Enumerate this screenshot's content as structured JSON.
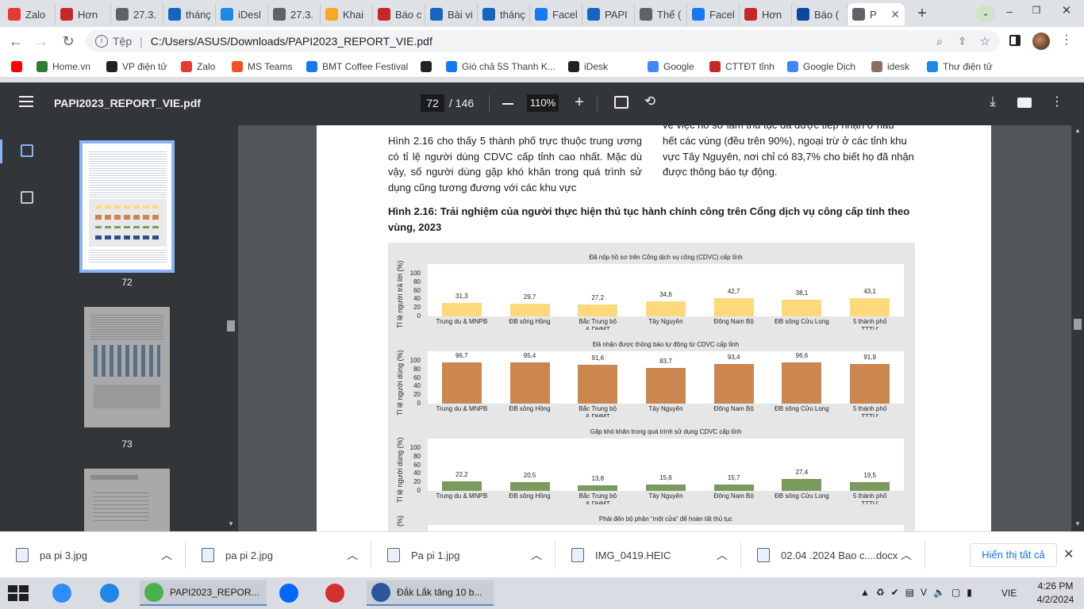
{
  "browser": {
    "tabs": [
      {
        "label": "Zalo",
        "icon": "zalo-icon",
        "color": "#e53935"
      },
      {
        "label": "Hơn",
        "icon": "news-icon",
        "color": "#c62828"
      },
      {
        "label": "27.3.",
        "icon": "globe-icon",
        "color": "#5f6368"
      },
      {
        "label": "thánç",
        "icon": "doc-icon",
        "color": "#1565c0"
      },
      {
        "label": "iDesl",
        "icon": "idesk-icon",
        "color": "#1e88e5"
      },
      {
        "label": "27.3.",
        "icon": "globe-icon",
        "color": "#5f6368"
      },
      {
        "label": "Khai",
        "icon": "star-icon",
        "color": "#f9a825"
      },
      {
        "label": "Báo c",
        "icon": "news-icon",
        "color": "#c62828"
      },
      {
        "label": "Bài vi",
        "icon": "doc-icon",
        "color": "#1565c0"
      },
      {
        "label": "thánç",
        "icon": "doc-icon",
        "color": "#1565c0"
      },
      {
        "label": "Facel",
        "icon": "facebook-icon",
        "color": "#1877f2"
      },
      {
        "label": "PAPI",
        "icon": "hq-icon",
        "color": "#1565c0"
      },
      {
        "label": "Thể (",
        "icon": "globe-icon",
        "color": "#5f6368"
      },
      {
        "label": "Facel",
        "icon": "facebook-icon",
        "color": "#1877f2"
      },
      {
        "label": "Hơn",
        "icon": "gov-icon",
        "color": "#c62828"
      },
      {
        "label": "Báo (",
        "icon": "p-icon",
        "color": "#0d47a1"
      },
      {
        "label": "P",
        "icon": "globe-icon",
        "color": "#5f6368"
      }
    ],
    "new_tab": "+",
    "omnibox": {
      "prefix": "Tệp",
      "url": "C:/Users/ASUS/Downloads/PAPI2023_REPORT_VIE.pdf"
    },
    "bookmarks": [
      {
        "label": "",
        "icon": "youtube-icon",
        "color": "#ff0000"
      },
      {
        "label": "Home.vn",
        "icon": "home-icon",
        "color": "#2e7d32"
      },
      {
        "label": "VP điện tử",
        "icon": "globe-icon",
        "color": "#202124"
      },
      {
        "label": "Zalo",
        "icon": "zalo-icon",
        "color": "#e53935"
      },
      {
        "label": "MS Teams",
        "icon": "windows-icon",
        "color": "#f25022"
      },
      {
        "label": "BMT Coffee Festival",
        "icon": "facebook-icon",
        "color": "#1877f2"
      },
      {
        "label": "",
        "icon": "globe-icon",
        "color": "#202124"
      },
      {
        "label": "Giò chả 5S Thanh K...",
        "icon": "facebook-icon",
        "color": "#1877f2"
      },
      {
        "label": "iDesk",
        "icon": "globe-icon",
        "color": "#202124"
      },
      {
        "label": "Google",
        "icon": "google-icon",
        "color": "#4285f4"
      },
      {
        "label": "CTTĐT tỉnh",
        "icon": "gov-icon",
        "color": "#c62828"
      },
      {
        "label": "Google Dịch",
        "icon": "translate-icon",
        "color": "#4285f4"
      },
      {
        "label": "idesk",
        "icon": "idesk-icon",
        "color": "#8d6e63"
      },
      {
        "label": "Thư điện tử",
        "icon": "mail-icon",
        "color": "#1e88e5"
      }
    ]
  },
  "pdf": {
    "filename": "PAPI2023_REPORT_VIE.pdf",
    "page_current": "72",
    "page_total": "/ 146",
    "zoom": "110%",
    "thumbnails": [
      {
        "label": "72",
        "selected": true
      },
      {
        "label": "73",
        "selected": false
      },
      {
        "label": "",
        "selected": false
      }
    ],
    "paragraph_left": "Hình 2.16 cho thấy 5 thành phố trực thuộc trung ương có tỉ lệ người dùng CDVC cấp tỉnh cao nhất. Mặc dù vậy, số người dùng gặp khó khăn trong quá trình sử dụng cũng tương đương với các khu vực",
    "paragraph_right_partial": "về việc hồ sơ làm thủ tục đã được tiếp nhận ở hầu",
    "paragraph_right": "hết các vùng (đều trên 90%), ngoại trừ ở các tỉnh khu vực Tây Nguyên, nơi chỉ có 83,7% cho biết họ đã nhận được thông báo tự động.",
    "figure_title": "Hình 2.16: Trải nghiệm của người thực hiện thủ tục hành chính công trên Cổng dịch vụ công cấp tỉnh theo vùng, 2023"
  },
  "chart_data": [
    {
      "type": "bar",
      "title": "Đã nộp hồ sơ trên Cổng dịch vụ công (CDVC) cấp tỉnh",
      "ylabel": "Tỉ lệ người trả lời (%)",
      "ylim": [
        0,
        100
      ],
      "yticks": [
        "100",
        "80",
        "60",
        "40",
        "20",
        "0"
      ],
      "categories": [
        "Trung du & MNPB",
        "ĐB sông Hồng",
        "Bắc Trung bộ & DHMT",
        "Tây Nguyên",
        "Đông Nam Bộ",
        "ĐB sông Cửu Long",
        "5 thành phố TTTƯ"
      ],
      "values": [
        31.3,
        29.7,
        27.2,
        34.6,
        42.7,
        38.1,
        43.1
      ],
      "value_labels": [
        "31,3",
        "29,7",
        "27,2",
        "34,6",
        "42,7",
        "38,1",
        "43,1"
      ],
      "color": "#fed97c"
    },
    {
      "type": "bar",
      "title": "Đã nhận được thông báo tự động từ CDVC cấp tỉnh",
      "ylabel": "Tỉ lệ người dùng (%)",
      "ylim": [
        0,
        100
      ],
      "yticks": [
        "100",
        "80",
        "60",
        "40",
        "20",
        "0"
      ],
      "categories": [
        "Trung du & MNPB",
        "ĐB sông Hồng",
        "Bắc Trung bộ & DHMT",
        "Tây Nguyên",
        "Đông Nam Bộ",
        "ĐB sông Cửu Long",
        "5 thành phố TTTƯ"
      ],
      "values": [
        96.7,
        95.4,
        91.6,
        83.7,
        93.4,
        96.6,
        91.9
      ],
      "value_labels": [
        "96,7",
        "95,4",
        "91,6",
        "83,7",
        "93,4",
        "96,6",
        "91,9"
      ],
      "color": "#cc8750"
    },
    {
      "type": "bar",
      "title": "Gặp khó khăn trong quá trình sử dụng CDVC cấp tỉnh",
      "ylabel": "Tỉ lệ người dùng (%)",
      "ylim": [
        0,
        100
      ],
      "yticks": [
        "100",
        "80",
        "60",
        "40",
        "20",
        "0"
      ],
      "categories": [
        "Trung du & MNPB",
        "ĐB sông Hồng",
        "Bắc Trung bộ & DHMT",
        "Tây Nguyên",
        "Đông Nam Bộ",
        "ĐB sông Cửu Long",
        "5 thành phố TTTƯ"
      ],
      "values": [
        22.2,
        20.5,
        13.8,
        15.6,
        15.7,
        27.4,
        19.5
      ],
      "value_labels": [
        "22,2",
        "20,5",
        "13,8",
        "15,6",
        "15,7",
        "27,4",
        "19,5"
      ],
      "color": "#7a9a5e"
    },
    {
      "type": "bar",
      "title": "Phải đến bộ phận “một cửa” để hoàn tất thủ tục",
      "ylabel": "(%)",
      "values": []
    }
  ],
  "downloads": {
    "items": [
      {
        "label": "pa pi 3.jpg"
      },
      {
        "label": "pa pi 2.jpg"
      },
      {
        "label": "Pa pi 1.jpg"
      },
      {
        "label": "IMG_0419.HEIC"
      },
      {
        "label": "02.04 .2024 Bao c....docx"
      }
    ],
    "show_all": "Hiển thị tất cả"
  },
  "taskbar": {
    "apps": [
      {
        "label": "",
        "icon": "zoom-icon"
      },
      {
        "label": "",
        "icon": "ie-icon"
      },
      {
        "label": "PAPI2023_REPOR...",
        "icon": "chrome-icon"
      },
      {
        "label": "",
        "icon": "zalo-icon"
      },
      {
        "label": "",
        "icon": "app-icon"
      },
      {
        "label": "Đắk Lắk tăng 10 b...",
        "icon": "word-icon"
      }
    ],
    "lang": "VIE",
    "time": "4:26 PM",
    "date": "4/2/2024"
  }
}
